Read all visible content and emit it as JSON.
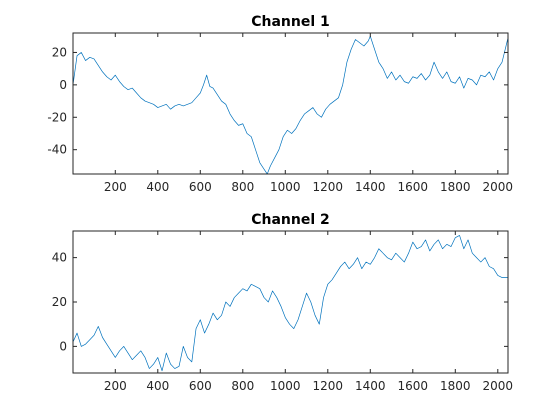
{
  "colors": {
    "series": "#0072bd",
    "axis": "#262626",
    "background": "#ffffff"
  },
  "chart_data": [
    {
      "type": "line",
      "title": "Channel 1",
      "xlabel": "",
      "ylabel": "",
      "grid": false,
      "xlim": [
        1,
        2048
      ],
      "ylim": [
        -55,
        32
      ],
      "xticks": [
        200,
        400,
        600,
        800,
        1000,
        1200,
        1400,
        1600,
        1800,
        2000
      ],
      "yticks": [
        -40,
        -20,
        0,
        20
      ],
      "series": [
        {
          "color": "#0072bd",
          "x": [
            1,
            20,
            40,
            60,
            80,
            100,
            120,
            140,
            160,
            180,
            200,
            220,
            240,
            260,
            280,
            300,
            320,
            340,
            360,
            380,
            400,
            420,
            440,
            460,
            480,
            500,
            520,
            540,
            560,
            580,
            600,
            615,
            630,
            645,
            660,
            680,
            700,
            720,
            740,
            760,
            780,
            800,
            820,
            840,
            860,
            880,
            900,
            915,
            930,
            950,
            970,
            990,
            1010,
            1030,
            1050,
            1070,
            1090,
            1110,
            1130,
            1150,
            1170,
            1190,
            1210,
            1230,
            1250,
            1270,
            1290,
            1310,
            1330,
            1350,
            1370,
            1390,
            1400,
            1420,
            1440,
            1460,
            1480,
            1500,
            1520,
            1540,
            1560,
            1580,
            1600,
            1620,
            1640,
            1660,
            1680,
            1700,
            1720,
            1740,
            1760,
            1780,
            1800,
            1820,
            1840,
            1860,
            1880,
            1900,
            1920,
            1940,
            1960,
            1980,
            2000,
            2020,
            2035,
            2048
          ],
          "y": [
            0,
            18,
            20,
            15,
            17,
            16,
            12,
            8,
            5,
            3,
            6,
            2,
            -1,
            -3,
            -2,
            -5,
            -8,
            -10,
            -11,
            -12,
            -14,
            -13,
            -12,
            -15,
            -13,
            -12,
            -13,
            -12,
            -11,
            -8,
            -5,
            0,
            6,
            -1,
            -2,
            -6,
            -10,
            -12,
            -18,
            -22,
            -25,
            -24,
            -30,
            -32,
            -40,
            -48,
            -52,
            -55,
            -50,
            -45,
            -40,
            -32,
            -28,
            -30,
            -27,
            -22,
            -18,
            -16,
            -14,
            -18,
            -20,
            -15,
            -12,
            -10,
            -8,
            0,
            14,
            22,
            28,
            26,
            24,
            27,
            30,
            22,
            14,
            10,
            4,
            8,
            3,
            6,
            2,
            1,
            5,
            4,
            7,
            3,
            6,
            14,
            8,
            4,
            8,
            2,
            1,
            5,
            -2,
            4,
            3,
            0,
            6,
            5,
            8,
            3,
            10,
            14,
            22,
            29
          ]
        }
      ]
    },
    {
      "type": "line",
      "title": "Channel 2",
      "xlabel": "",
      "ylabel": "",
      "grid": false,
      "xlim": [
        1,
        2048
      ],
      "ylim": [
        -12,
        52
      ],
      "xticks": [
        200,
        400,
        600,
        800,
        1000,
        1200,
        1400,
        1600,
        1800,
        2000
      ],
      "yticks": [
        0,
        20,
        40
      ],
      "series": [
        {
          "color": "#0072bd",
          "x": [
            1,
            20,
            40,
            60,
            80,
            100,
            120,
            140,
            160,
            180,
            200,
            220,
            240,
            260,
            280,
            300,
            320,
            340,
            360,
            380,
            400,
            420,
            440,
            460,
            480,
            500,
            520,
            540,
            560,
            580,
            600,
            620,
            640,
            660,
            680,
            700,
            720,
            740,
            760,
            780,
            800,
            820,
            840,
            860,
            880,
            900,
            920,
            940,
            960,
            980,
            1000,
            1020,
            1040,
            1060,
            1080,
            1100,
            1120,
            1140,
            1160,
            1180,
            1200,
            1220,
            1240,
            1260,
            1280,
            1300,
            1320,
            1340,
            1360,
            1380,
            1400,
            1420,
            1440,
            1460,
            1480,
            1500,
            1520,
            1540,
            1560,
            1580,
            1600,
            1620,
            1640,
            1660,
            1680,
            1700,
            1720,
            1740,
            1760,
            1780,
            1800,
            1820,
            1840,
            1860,
            1880,
            1900,
            1920,
            1940,
            1960,
            1980,
            2000,
            2020,
            2048
          ],
          "y": [
            2,
            6,
            0,
            1,
            3,
            5,
            9,
            4,
            1,
            -2,
            -5,
            -2,
            0,
            -3,
            -6,
            -4,
            -2,
            -5,
            -10,
            -8,
            -5,
            -11,
            -3,
            -8,
            -10,
            -9,
            0,
            -5,
            -7,
            8,
            12,
            6,
            10,
            15,
            12,
            14,
            20,
            18,
            22,
            24,
            26,
            25,
            28,
            27,
            26,
            22,
            20,
            25,
            22,
            18,
            13,
            10,
            8,
            12,
            18,
            24,
            20,
            14,
            10,
            22,
            28,
            30,
            33,
            36,
            38,
            35,
            37,
            40,
            35,
            38,
            37,
            40,
            44,
            42,
            40,
            39,
            42,
            40,
            38,
            42,
            47,
            44,
            45,
            48,
            43,
            46,
            48,
            44,
            46,
            45,
            49,
            50,
            44,
            48,
            42,
            40,
            38,
            40,
            36,
            35,
            32,
            31,
            31
          ]
        }
      ]
    }
  ]
}
